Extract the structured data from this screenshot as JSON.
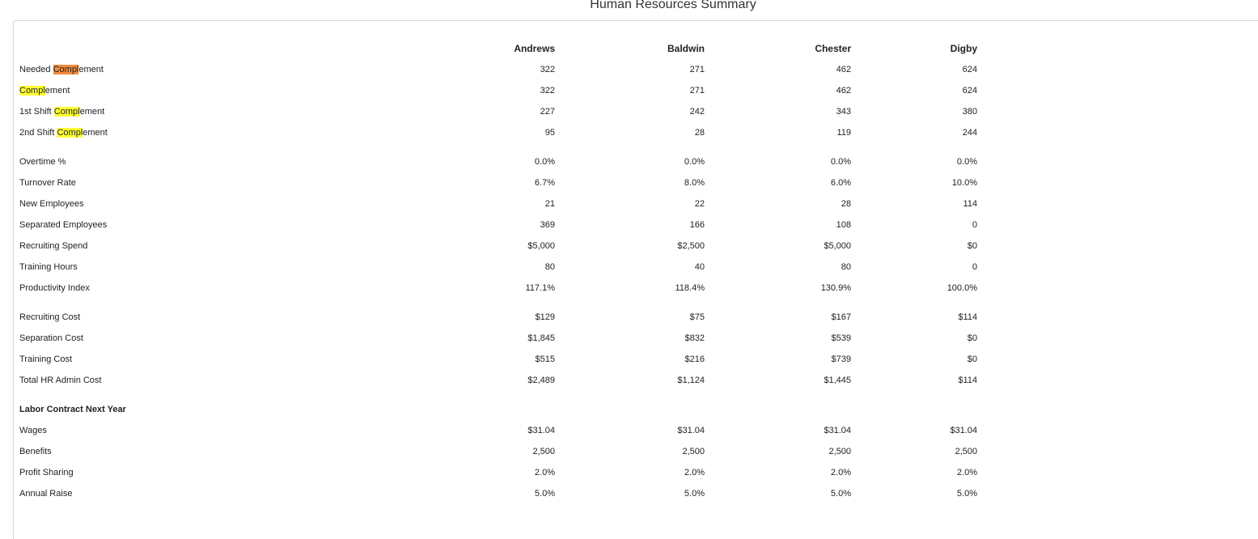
{
  "title": "Human Resources Summary",
  "columns": [
    "Andrews",
    "Baldwin",
    "Chester",
    "Digby"
  ],
  "rows": [
    {
      "pre": "Needed ",
      "hl": "Compl",
      "post": "ement",
      "values": [
        "322",
        "271",
        "462",
        "624"
      ]
    },
    {
      "pre": "",
      "hl": "Compl",
      "post": "ement",
      "values": [
        "322",
        "271",
        "462",
        "624"
      ]
    },
    {
      "pre": "1st Shift ",
      "hl": "Compl",
      "post": "ement",
      "values": [
        "227",
        "242",
        "343",
        "380"
      ]
    },
    {
      "pre": "2nd Shift ",
      "hl": "Compl",
      "post": "ement",
      "values": [
        "95",
        "28",
        "119",
        "244"
      ]
    },
    {
      "label": "Overtime %",
      "values": [
        "0.0%",
        "0.0%",
        "0.0%",
        "0.0%"
      ]
    },
    {
      "label": "Turnover Rate",
      "values": [
        "6.7%",
        "8.0%",
        "6.0%",
        "10.0%"
      ]
    },
    {
      "label": "New Employees",
      "values": [
        "21",
        "22",
        "28",
        "114"
      ]
    },
    {
      "label": "Separated Employees",
      "values": [
        "369",
        "166",
        "108",
        "0"
      ]
    },
    {
      "label": "Recruiting Spend",
      "values": [
        "$5,000",
        "$2,500",
        "$5,000",
        "$0"
      ]
    },
    {
      "label": "Training Hours",
      "values": [
        "80",
        "40",
        "80",
        "0"
      ]
    },
    {
      "label": "Productivity Index",
      "values": [
        "117.1%",
        "118.4%",
        "130.9%",
        "100.0%"
      ]
    },
    {
      "label": "Recruiting Cost",
      "values": [
        "$129",
        "$75",
        "$167",
        "$114"
      ]
    },
    {
      "label": "Separation Cost",
      "values": [
        "$1,845",
        "$832",
        "$539",
        "$0"
      ]
    },
    {
      "label": "Training Cost",
      "values": [
        "$515",
        "$216",
        "$739",
        "$0"
      ]
    },
    {
      "label": "Total HR Admin Cost",
      "values": [
        "$2,489",
        "$1,124",
        "$1,445",
        "$114"
      ]
    },
    {
      "label": "Labor Contract Next Year"
    },
    {
      "label": "Wages",
      "values": [
        "$31.04",
        "$31.04",
        "$31.04",
        "$31.04"
      ]
    },
    {
      "label": "Benefits",
      "values": [
        "2,500",
        "2,500",
        "2,500",
        "2,500"
      ]
    },
    {
      "label": "Profit Sharing",
      "values": [
        "2.0%",
        "2.0%",
        "2.0%",
        "2.0%"
      ]
    },
    {
      "label": "Annual Raise",
      "values": [
        "5.0%",
        "5.0%",
        "5.0%",
        "5.0%"
      ]
    }
  ],
  "colors": {
    "search_highlight": "#ffff33",
    "current_match_highlight": "#f08a3c"
  }
}
